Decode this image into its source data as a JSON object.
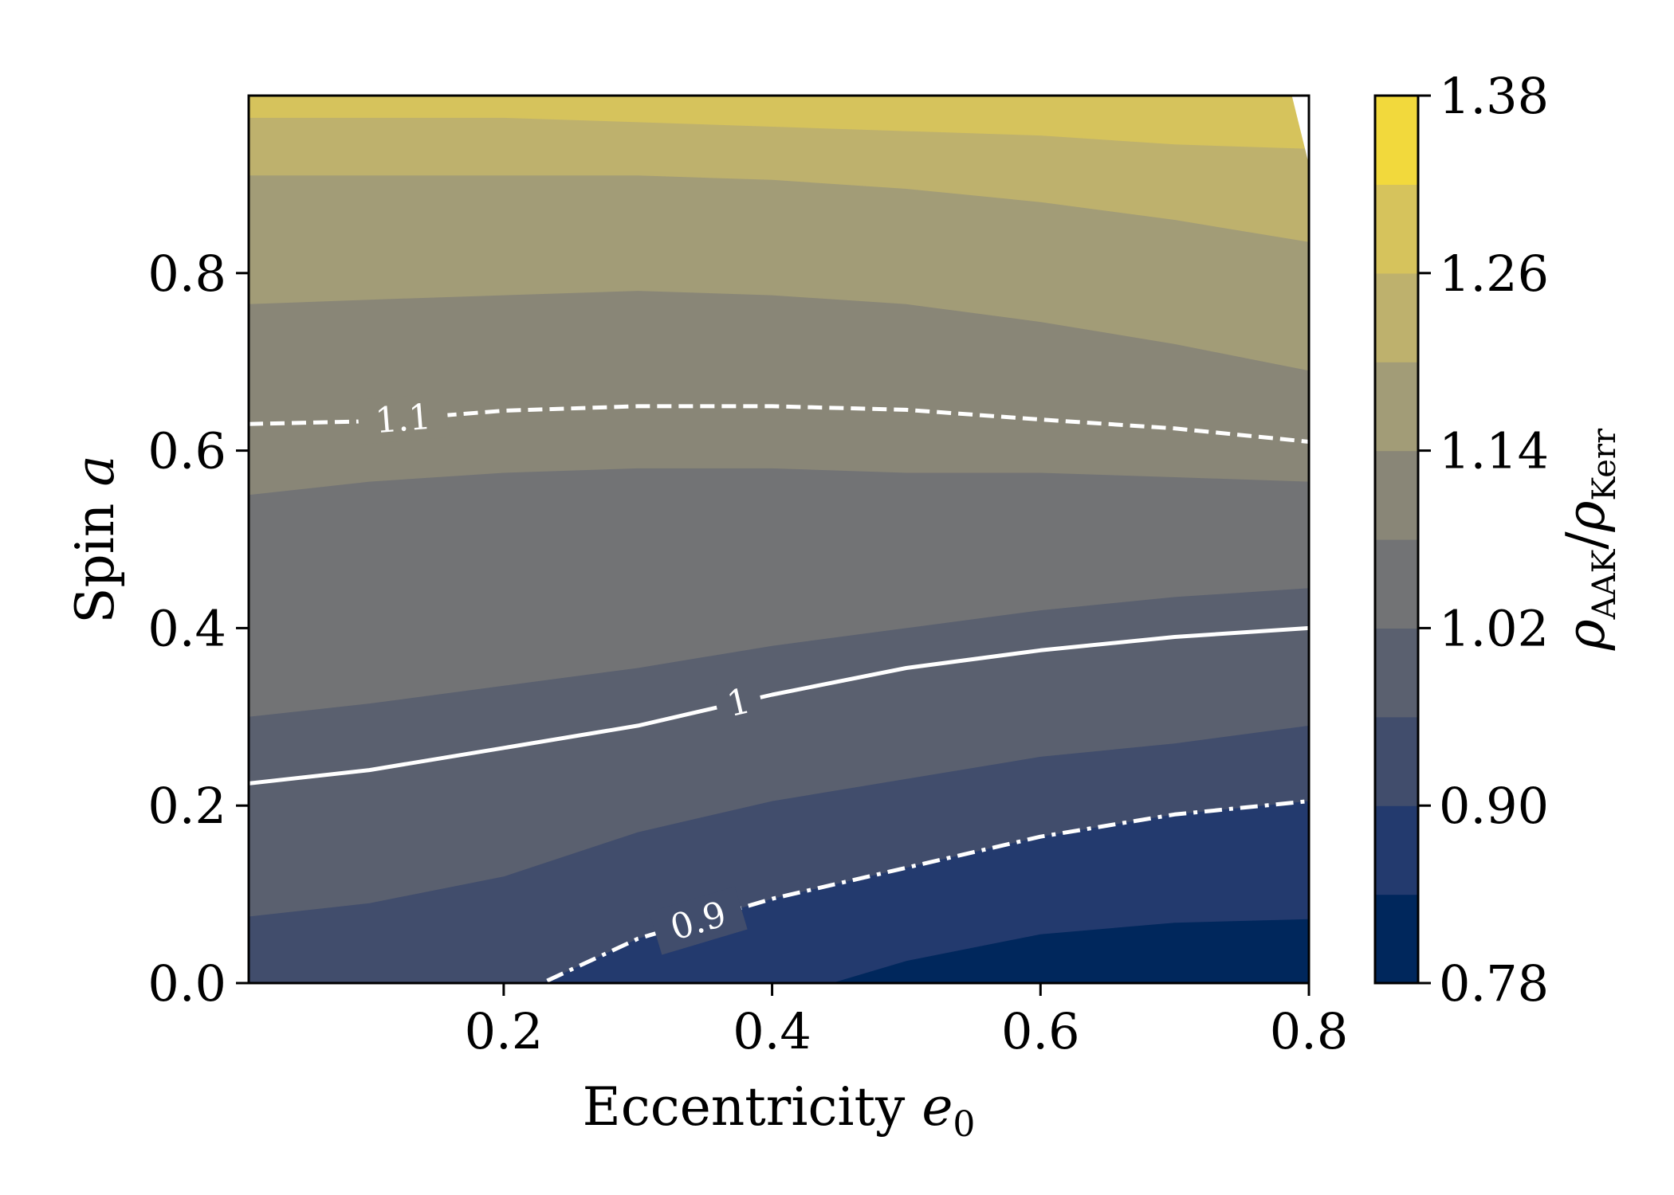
{
  "chart_data": {
    "type": "heatmap",
    "subtype": "filled-contour",
    "xlabel": "Eccentricity",
    "xlabel_symbol": "e",
    "xlabel_subscript": "0",
    "ylabel": "Spin",
    "ylabel_symbol": "a",
    "colorbar_label": {
      "base": "ρ",
      "numerator_sub": "AAK",
      "separator": "/",
      "denominator_sub": "Kerr"
    },
    "xlim": [
      0.01,
      0.8
    ],
    "ylim": [
      0.0,
      1.0
    ],
    "xticks": [
      0.2,
      0.4,
      0.6,
      0.8
    ],
    "xtick_labels": [
      "0.2",
      "0.4",
      "0.6",
      "0.8"
    ],
    "yticks": [
      0.0,
      0.2,
      0.4,
      0.6,
      0.8
    ],
    "ytick_labels": [
      "0.0",
      "0.2",
      "0.4",
      "0.6",
      "0.8"
    ],
    "levels": [
      0.78,
      0.84,
      0.9,
      0.96,
      1.02,
      1.08,
      1.14,
      1.2,
      1.26,
      1.32,
      1.38
    ],
    "colorbar_ticks": [
      0.78,
      0.9,
      1.02,
      1.14,
      1.26,
      1.38
    ],
    "colorbar_tick_labels": [
      "0.78",
      "0.90",
      "1.02",
      "1.14",
      "1.26",
      "1.38"
    ],
    "band_colors": [
      "#00275c",
      "#233a6e",
      "#414d6c",
      "#5a606f",
      "#727375",
      "#898677",
      "#a29c77",
      "#beb16d",
      "#d6c35c",
      "#f2d93c"
    ],
    "sample_e": [
      0.01,
      0.1,
      0.2,
      0.3,
      0.4,
      0.5,
      0.6,
      0.7,
      0.8
    ],
    "boundaries": [
      {
        "level": 0.84,
        "a": [
          null,
          null,
          null,
          null,
          -0.02,
          0.025,
          0.055,
          0.068,
          0.072
        ]
      },
      {
        "level": 0.9,
        "a": [
          -0.22,
          -0.12,
          -0.02,
          0.05,
          0.095,
          0.13,
          0.165,
          0.19,
          0.205
        ]
      },
      {
        "level": 0.96,
        "a": [
          0.075,
          0.09,
          0.12,
          0.17,
          0.205,
          0.23,
          0.255,
          0.27,
          0.29
        ]
      },
      {
        "level": 1.0,
        "a": [
          0.225,
          0.24,
          0.265,
          0.29,
          0.325,
          0.355,
          0.375,
          0.39,
          0.4
        ]
      },
      {
        "level": 1.02,
        "a": [
          0.3,
          0.315,
          0.335,
          0.355,
          0.38,
          0.4,
          0.42,
          0.435,
          0.445
        ]
      },
      {
        "level": 1.08,
        "a": [
          0.55,
          0.565,
          0.575,
          0.58,
          0.58,
          0.575,
          0.575,
          0.57,
          0.565
        ]
      },
      {
        "level": 1.1,
        "a": [
          0.63,
          0.633,
          0.645,
          0.65,
          0.65,
          0.646,
          0.635,
          0.625,
          0.61
        ]
      },
      {
        "level": 1.14,
        "a": [
          0.765,
          0.77,
          0.775,
          0.78,
          0.775,
          0.765,
          0.745,
          0.72,
          0.69
        ]
      },
      {
        "level": 1.2,
        "a": [
          0.91,
          0.91,
          0.91,
          0.91,
          0.905,
          0.895,
          0.88,
          0.86,
          0.835
        ]
      },
      {
        "level": 1.26,
        "a": [
          0.975,
          0.975,
          0.975,
          0.97,
          0.965,
          0.96,
          0.955,
          0.945,
          0.94
        ]
      }
    ],
    "highlighted_contours": [
      {
        "level": 1.1,
        "label": "1.1",
        "style": "dashed",
        "label_e": 0.125
      },
      {
        "level": 1.0,
        "label": "1",
        "style": "solid",
        "label_e": 0.375
      },
      {
        "level": 0.9,
        "label": "0.9",
        "style": "dashdot",
        "label_e": 0.345
      }
    ]
  }
}
